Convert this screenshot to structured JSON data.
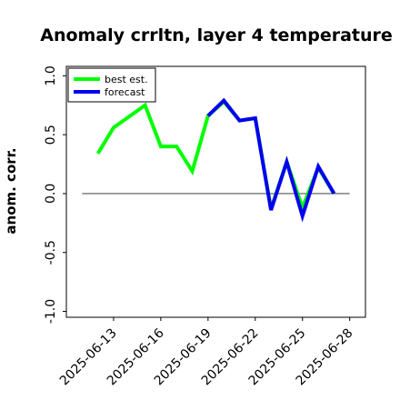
{
  "chart_data": {
    "type": "line",
    "title": "Anomaly crrltn, layer 4 temperature",
    "xlabel": "",
    "ylabel": "anom. corr.",
    "xlim": [
      "2025-06-10",
      "2025-06-29"
    ],
    "ylim": [
      -1.05,
      1.08
    ],
    "grid": false,
    "legend_position": "top-left",
    "x_ticks": [
      "2025-06-13",
      "2025-06-16",
      "2025-06-19",
      "2025-06-22",
      "2025-06-25",
      "2025-06-28"
    ],
    "x_tick_colors": [
      "#000000",
      "#000000",
      "#228b22",
      "#000000",
      "#000000",
      "#000000"
    ],
    "y_ticks": [
      "-1.0",
      "-0.5",
      "0.0",
      "0.5",
      "1.0"
    ],
    "y_tick_values": [
      -1.0,
      -0.5,
      0.0,
      0.5,
      1.0
    ],
    "reference_line": {
      "y": 0.0,
      "x_start": "2025-06-11",
      "x_end": "2025-06-28",
      "color": "#555555"
    },
    "series": [
      {
        "name": "best est.",
        "color": "#00ff00",
        "x": [
          "2025-06-12",
          "2025-06-13",
          "2025-06-15",
          "2025-06-16",
          "2025-06-17",
          "2025-06-18",
          "2025-06-19",
          "2025-06-20",
          "2025-06-21",
          "2025-06-22",
          "2025-06-23",
          "2025-06-24",
          "2025-06-25",
          "2025-06-26",
          "2025-06-27"
        ],
        "y": [
          0.34,
          0.56,
          0.75,
          0.4,
          0.4,
          0.19,
          0.66,
          0.78,
          0.62,
          0.64,
          -0.13,
          0.27,
          -0.12,
          0.22,
          0.0
        ]
      },
      {
        "name": "forecast",
        "color": "#0000ee",
        "x": [
          "2025-06-19",
          "2025-06-20",
          "2025-06-21",
          "2025-06-22",
          "2025-06-23",
          "2025-06-24",
          "2025-06-25",
          "2025-06-26",
          "2025-06-27"
        ],
        "y": [
          0.66,
          0.79,
          0.62,
          0.64,
          -0.14,
          0.27,
          -0.19,
          0.23,
          0.0
        ]
      }
    ]
  }
}
